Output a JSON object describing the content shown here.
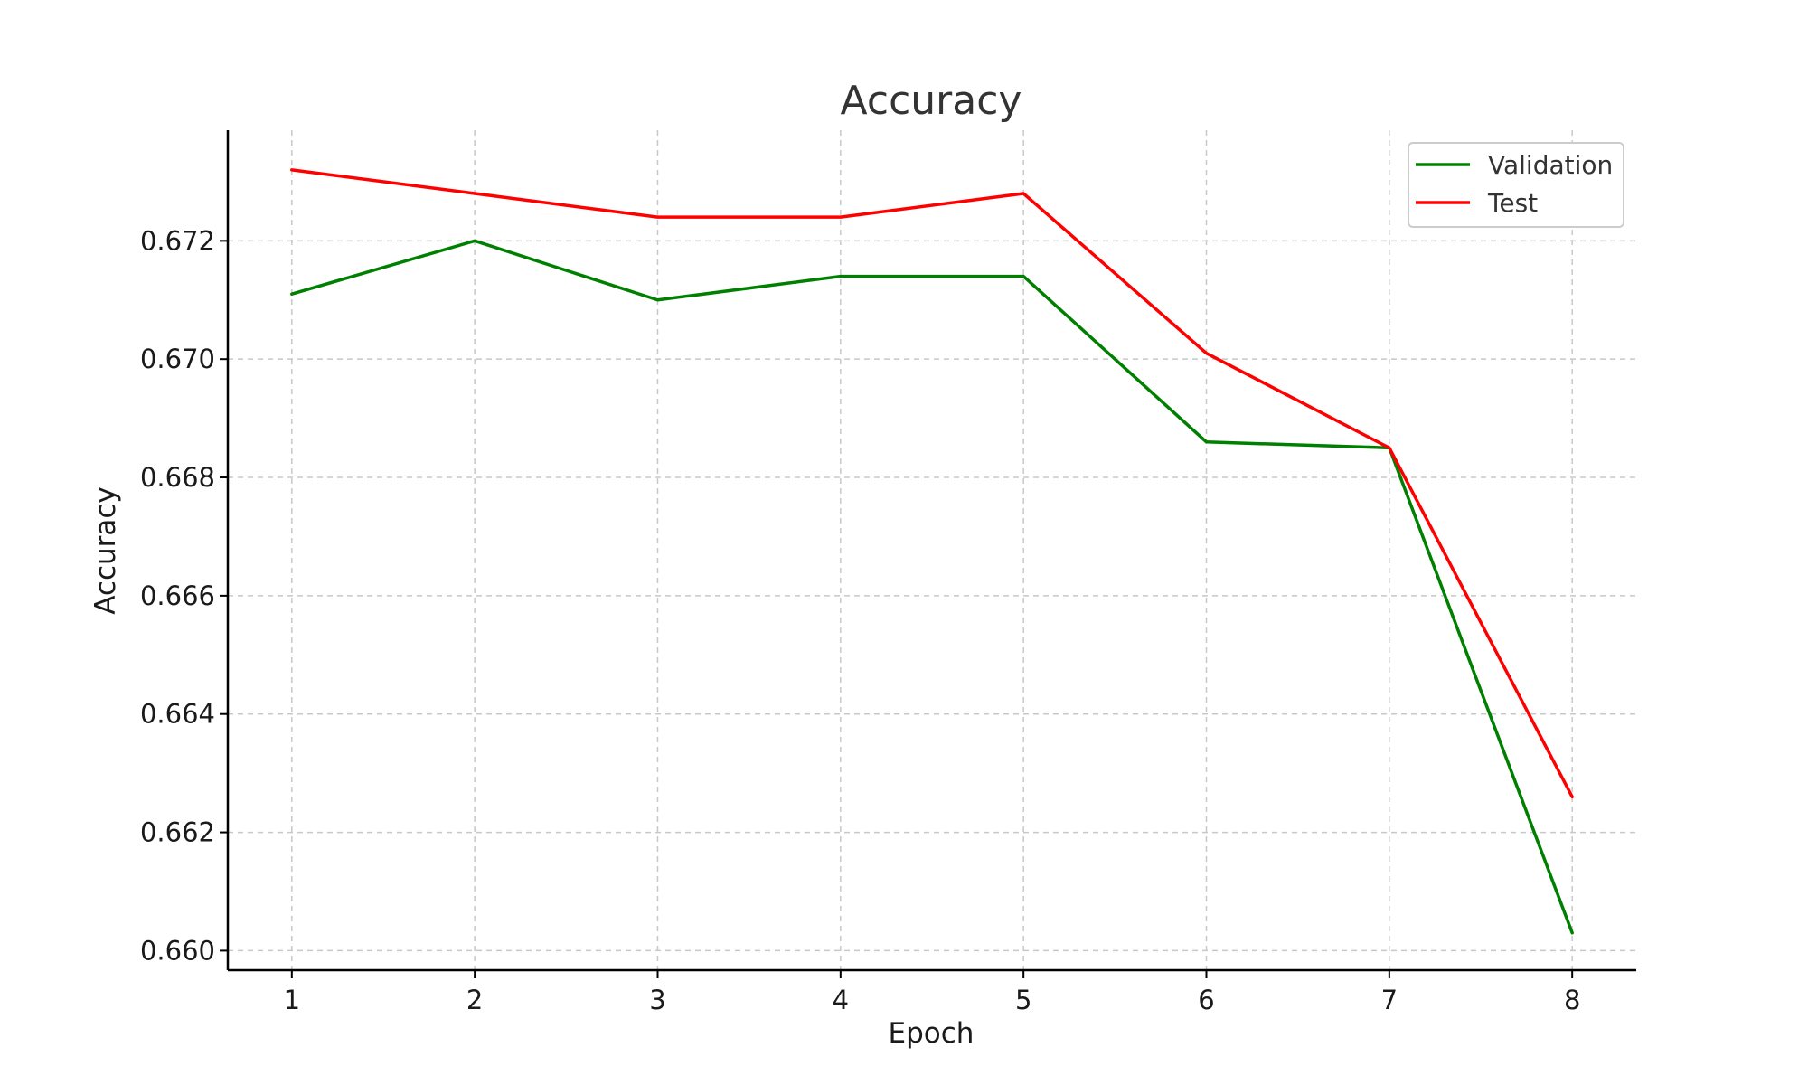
{
  "chart_data": {
    "type": "line",
    "title": "Accuracy",
    "xlabel": "Epoch",
    "ylabel": "Accuracy",
    "x": [
      1,
      2,
      3,
      4,
      5,
      6,
      7,
      8
    ],
    "x_tick_labels": [
      "1",
      "2",
      "3",
      "4",
      "5",
      "6",
      "7",
      "8"
    ],
    "xlim": [
      0.65,
      8.35
    ],
    "ylim": [
      0.65967,
      0.67387
    ],
    "y_ticks": [
      0.66,
      0.662,
      0.664,
      0.666,
      0.668,
      0.67,
      0.672
    ],
    "y_tick_labels": [
      "0.660",
      "0.662",
      "0.664",
      "0.666",
      "0.668",
      "0.670",
      "0.672"
    ],
    "grid": true,
    "legend_position": "top-right",
    "series": [
      {
        "name": "Validation",
        "color": "#008000",
        "values": [
          0.6711,
          0.672,
          0.671,
          0.6714,
          0.6714,
          0.6686,
          0.6685,
          0.6603
        ]
      },
      {
        "name": "Test",
        "color": "#ff0000",
        "values": [
          0.6732,
          0.6728,
          0.6724,
          0.6724,
          0.6728,
          0.6701,
          0.6685,
          0.6626
        ]
      }
    ]
  }
}
